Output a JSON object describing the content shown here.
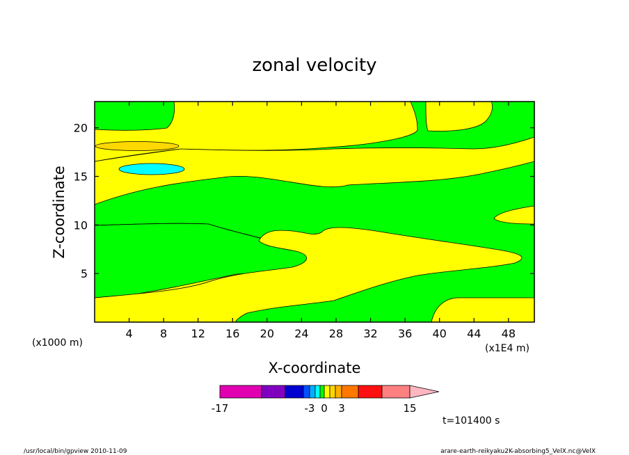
{
  "chart_data": {
    "type": "contour",
    "title": "zonal velocity",
    "xlabel": "X-coordinate",
    "ylabel": "Z-coordinate",
    "x_unit": "(x1E4 m)",
    "y_unit": "(x1000 m)",
    "xlim": [
      0,
      51
    ],
    "ylim": [
      0,
      22.7
    ],
    "x_ticks": [
      4,
      8,
      12,
      16,
      20,
      24,
      28,
      32,
      36,
      40,
      44,
      48
    ],
    "y_ticks": [
      5,
      10,
      15,
      20
    ],
    "colorbar": {
      "levels": [
        -17,
        -11,
        -7,
        -5,
        -3,
        -2,
        -1,
        0,
        1,
        2,
        3,
        5,
        7,
        11,
        15
      ],
      "tick_labels": [
        "-17",
        "-3",
        "0",
        "3",
        "15"
      ],
      "tick_values": [
        -17,
        -3,
        0,
        3,
        15
      ],
      "colors": [
        "#e000b0",
        "#8000c0",
        "#0000d0",
        "#0050ff",
        "#00b0ff",
        "#00ffff",
        "#00ff00",
        "#ffff00",
        "#ffd800",
        "#ffb000",
        "#ff7800",
        "#ff1010",
        "#ff8080",
        "#ffb6c1"
      ]
    },
    "fill_colors": {
      "positive_small": "#ffff00",
      "negative_small": "#00ff00",
      "positive_mid": "#ffd800",
      "negative_mid": "#00ffff"
    },
    "regions": [
      {
        "sign": "negative",
        "approx": "z < 2.5, x < 16"
      },
      {
        "sign": "positive",
        "approx": "band from z≈2.5 (left) rising to z≈5"
      },
      {
        "sign": "negative",
        "approx": "band z≈5-10 on left, thinning to right"
      },
      {
        "sign": "positive",
        "approx": "tongue z≈5-10, x 18-50"
      },
      {
        "sign": "positive",
        "approx": "band z≈12-17"
      },
      {
        "sign": "negative",
        "approx": "upper band z≈15-20"
      },
      {
        "sign": "positive_mid",
        "approx": "ellipse at x≈5, z≈18.2"
      },
      {
        "sign": "negative_mid",
        "approx": "ellipse at x≈6.5, z≈15.8"
      }
    ]
  },
  "time_label": "t=101400 s",
  "footer": {
    "left": "/usr/local/bin/gpview  2010-11-09",
    "right": "arare-earth-reikyaku2K-absorbing5_VelX.nc@VelX"
  }
}
